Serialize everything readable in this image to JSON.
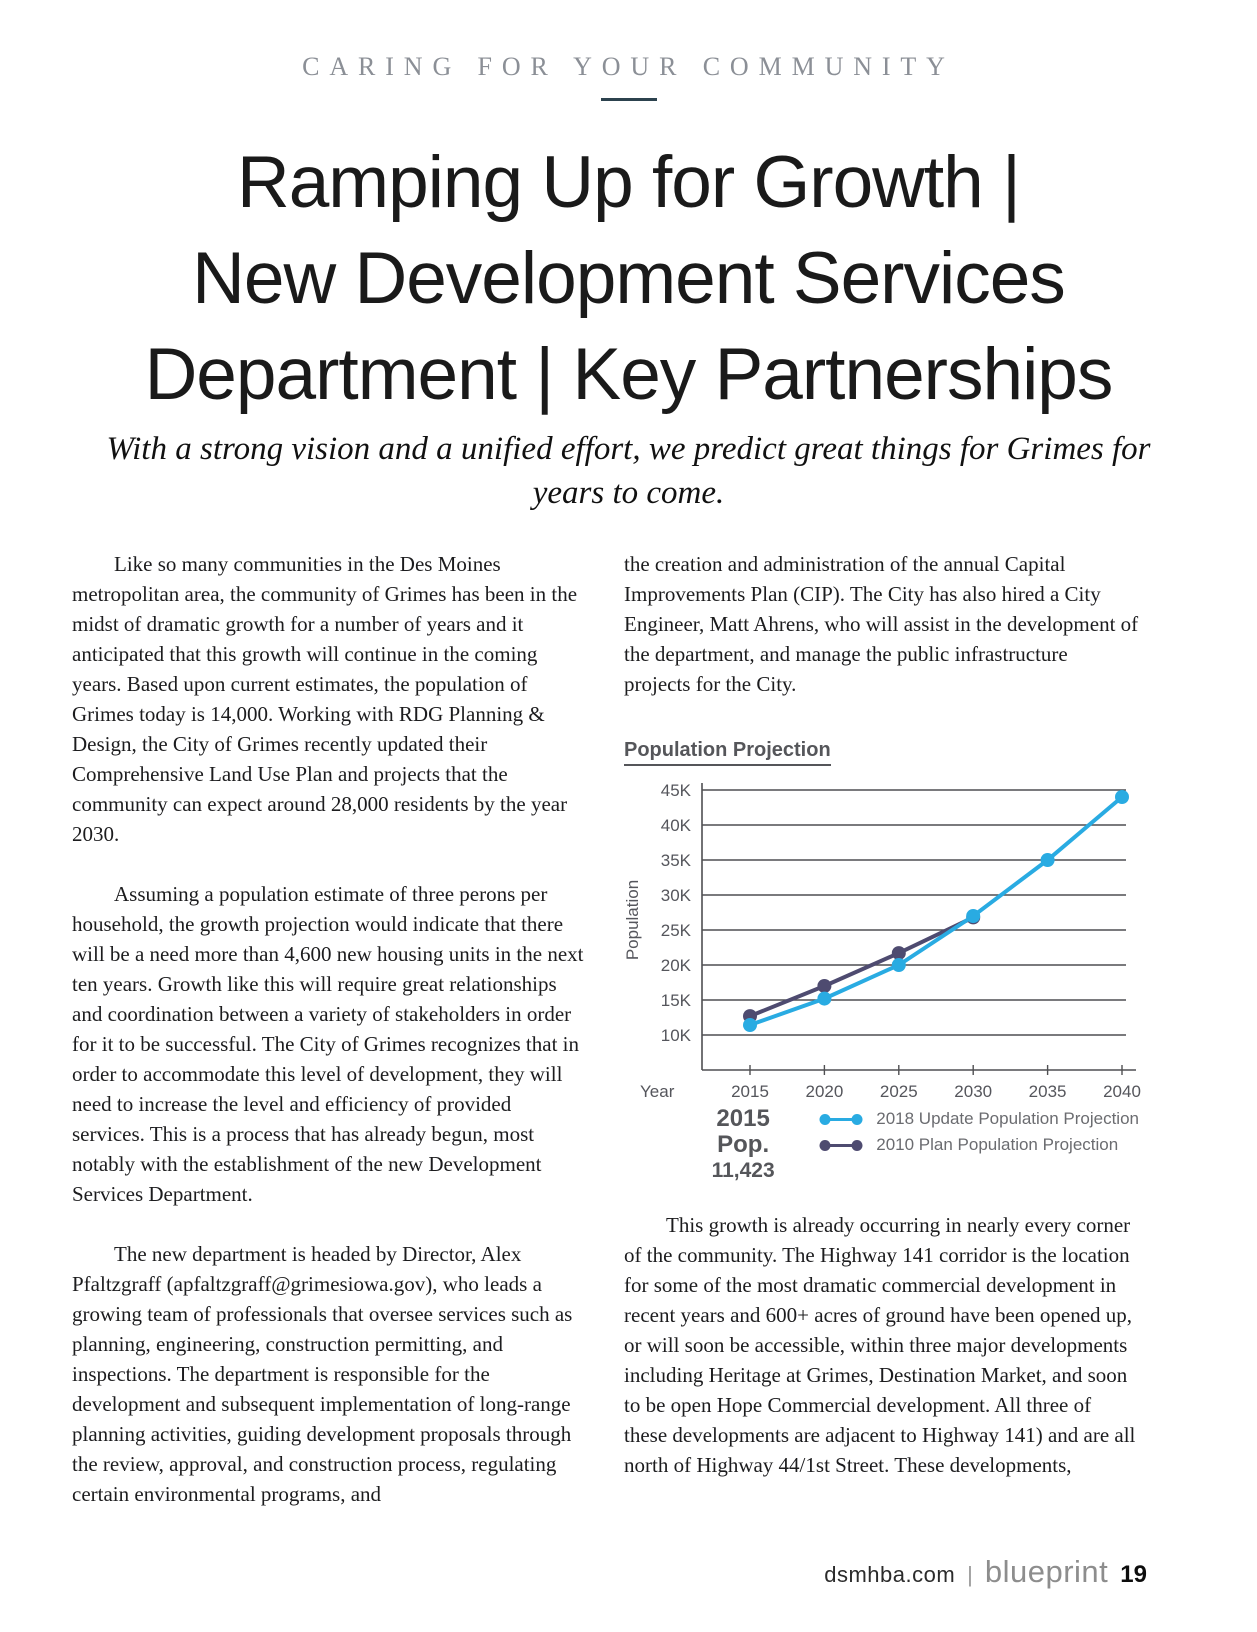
{
  "kicker": "CARING FOR YOUR COMMUNITY",
  "title": {
    "line1": "Ramping Up for Growth |",
    "line2": "New Development Services",
    "line3": "Department | Key Partnerships"
  },
  "subtitle": "With a strong vision and a unified effort, we predict great things for Grimes for years to come.",
  "body": {
    "left": [
      "Like so many communities in the Des Moines metropolitan area, the community of Grimes has been in the midst of dramatic growth for a number of years and it anticipated that this growth will continue in the coming years.  Based upon current estimates, the population of Grimes today is 14,000.  Working with RDG Planning & Design, the City of Grimes recently updated their Comprehensive Land Use Plan and projects that the community can expect around 28,000 residents by the year 2030.",
      "Assuming a population estimate of three perons per household, the growth projection would indicate that there will be a need more than 4,600 new housing units in the next ten years.  Growth like this will require great relationships and coordination between a variety of stakeholders in order for it to be successful.  The City of Grimes recognizes that in order to accommodate this level of development, they will need to increase the level and efficiency of provided services.  This is a process that has already begun, most notably with the establishment of the new Development Services Department.",
      "The new department is headed by Director, Alex Pfaltzgraff (apfaltzgraff@grimesiowa.gov), who leads a growing team of professionals that oversee services such as planning, engineering, construction permitting, and inspections.  The department is responsible for the development and subsequent implementation of long-range planning activities, guiding development proposals through the review, approval, and construction process, regulating certain environmental programs, and"
    ],
    "right_top": "the creation and administration of the annual Capital Improvements Plan (CIP).  The City has also hired a City Engineer, Matt Ahrens, who will assist in the development of the department, and manage the public infrastructure projects for the City.",
    "right_bottom": "This growth is already occurring in nearly every corner of the community.  The Highway 141 corridor is the location for some of the most dramatic commercial development in recent years and 600+ acres of ground have been opened up, or will soon be accessible, within three major developments including Heritage at Grimes, Destination Market, and soon to be open Hope Commercial development.  All three of these developments are adjacent to Highway 141) and are all north of Highway 44/1st Street.  These developments,"
  },
  "chart_data": {
    "type": "line",
    "title": "Population Projection",
    "xlabel": "Year",
    "ylabel": "Population",
    "x": [
      2015,
      2020,
      2025,
      2030,
      2035,
      2040
    ],
    "series": [
      {
        "name": "2018 Update Population Projection",
        "color": "#29abe2",
        "values": [
          11423,
          15200,
          20000,
          27000,
          35000,
          44000
        ]
      },
      {
        "name": "2010 Plan Population Projection",
        "color": "#4e4b70",
        "values": [
          12700,
          17000,
          21700,
          26800,
          null,
          null
        ]
      }
    ],
    "ylim": [
      5000,
      45000
    ],
    "ytick_step": 5000,
    "yticks_labeled": [
      "10K",
      "15K",
      "20K",
      "25K",
      "30K",
      "35K",
      "40K",
      "45K"
    ],
    "grid": true,
    "legend_position": "bottom",
    "annotation": {
      "label": "2015 Pop.",
      "value": "11,423"
    },
    "colors": {
      "grid": "#4f4f52",
      "tick_text": "#55565c"
    }
  },
  "footer": {
    "site": "dsmhba.com",
    "divider": "|",
    "brand": "blueprint",
    "page_number": "19"
  }
}
